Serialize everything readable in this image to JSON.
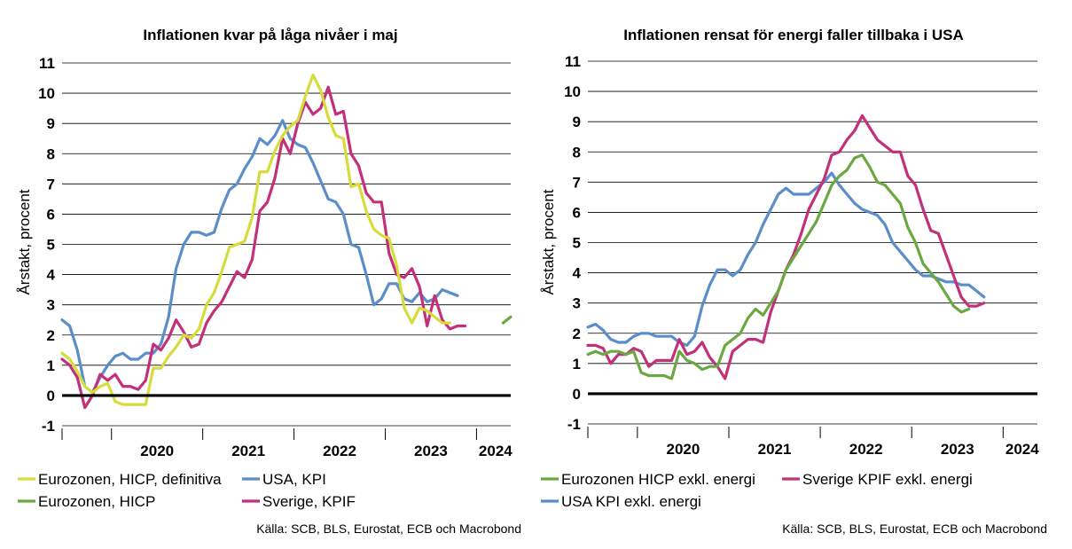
{
  "chart_data": [
    {
      "type": "line",
      "title": "Inflationen kvar på låga nivåer i maj",
      "ylabel": "Årstakt, procent",
      "xlabel": "",
      "ylim": [
        -1,
        11
      ],
      "yticks": [
        "-1",
        "0",
        "1",
        "2",
        "3",
        "4",
        "5",
        "6",
        "7",
        "8",
        "9",
        "10",
        "11"
      ],
      "year_labels": [
        "2020",
        "2021",
        "2022",
        "2023",
        "2024"
      ],
      "x_start": "2019-06",
      "x_end": "2024-05",
      "grid": true,
      "legend_position": "bottom",
      "legend": [
        {
          "name": "Eurozonen, HICP, definitiva",
          "color": "#d6dc3c"
        },
        {
          "name": "USA, KPI",
          "color": "#5b8ec9"
        },
        {
          "name": "Eurozonen, HICP",
          "color": "#6aa842"
        },
        {
          "name": "Sverige, KPIF",
          "color": "#c2307a"
        }
      ],
      "source": "Källa: SCB, BLS, Eurostat, ECB och Macrobond",
      "series": [
        {
          "name": "USA, KPI",
          "color": "#5b8ec9",
          "start": "2019-06",
          "values": [
            2.5,
            2.3,
            1.5,
            0.3,
            0.1,
            0.6,
            1.0,
            1.3,
            1.4,
            1.2,
            1.2,
            1.4,
            1.4,
            1.7,
            2.6,
            4.2,
            5.0,
            5.4,
            5.4,
            5.3,
            5.4,
            6.2,
            6.8,
            7.0,
            7.5,
            7.9,
            8.5,
            8.3,
            8.6,
            9.1,
            8.5,
            8.3,
            8.2,
            7.7,
            7.1,
            6.5,
            6.4,
            6.0,
            5.0,
            4.9,
            4.0,
            3.0,
            3.2,
            3.7,
            3.7,
            3.2,
            3.1,
            3.4,
            3.1,
            3.2,
            3.5,
            3.4,
            3.3
          ]
        },
        {
          "name": "Sverige, KPIF",
          "color": "#c2307a",
          "start": "2019-06",
          "values": [
            1.2,
            1.0,
            0.6,
            -0.4,
            0.0,
            0.7,
            0.5,
            0.7,
            0.3,
            0.3,
            0.2,
            0.5,
            1.7,
            1.5,
            1.9,
            2.5,
            2.1,
            1.6,
            1.7,
            2.4,
            2.8,
            3.1,
            3.6,
            4.1,
            3.9,
            4.5,
            6.1,
            6.4,
            7.2,
            8.5,
            8.0,
            9.0,
            9.7,
            9.3,
            9.5,
            10.2,
            9.3,
            9.4,
            8.0,
            7.6,
            6.7,
            6.4,
            6.4,
            4.7,
            4.0,
            3.9,
            4.2,
            3.6,
            2.3,
            3.3,
            2.5,
            2.2,
            2.3,
            2.3
          ]
        },
        {
          "name": "Eurozonen, HICP, definitiva",
          "color": "#d6dc3c",
          "start": "2019-06",
          "values": [
            1.4,
            1.2,
            0.8,
            0.3,
            0.1,
            0.3,
            0.4,
            -0.2,
            -0.3,
            -0.3,
            -0.3,
            -0.3,
            0.9,
            0.9,
            1.3,
            1.6,
            2.0,
            1.9,
            2.2,
            3.0,
            3.4,
            4.1,
            4.9,
            5.0,
            5.1,
            5.9,
            7.4,
            7.4,
            8.1,
            8.6,
            8.9,
            9.1,
            9.9,
            10.6,
            10.1,
            9.2,
            8.6,
            8.5,
            6.9,
            7.0,
            6.1,
            5.5,
            5.3,
            5.2,
            4.3,
            2.9,
            2.4,
            2.9,
            2.8,
            2.6,
            2.4,
            2.4
          ]
        },
        {
          "name": "Eurozonen, HICP",
          "color": "#6aa842",
          "start": "2024-04",
          "values": [
            2.4,
            2.6
          ]
        }
      ]
    },
    {
      "type": "line",
      "title": "Inflationen rensat för energi faller tillbaka i USA",
      "ylabel": "Årstakt, procent",
      "xlabel": "",
      "ylim": [
        -1,
        11
      ],
      "yticks": [
        "-1",
        "0",
        "1",
        "2",
        "3",
        "4",
        "5",
        "6",
        "7",
        "8",
        "9",
        "10",
        "11"
      ],
      "year_labels": [
        "2020",
        "2021",
        "2022",
        "2023",
        "2024"
      ],
      "x_start": "2019-06",
      "x_end": "2024-05",
      "grid": true,
      "legend_position": "bottom",
      "legend": [
        {
          "name": "Eurozonen HICP exkl. energi",
          "color": "#6aa842"
        },
        {
          "name": "Sverige KPIF exkl. energi",
          "color": "#c2307a"
        },
        {
          "name": "USA KPI exkl. energi",
          "color": "#5b8ec9"
        }
      ],
      "source": "Källa: SCB, BLS, Eurostat, ECB och Macrobond",
      "series": [
        {
          "name": "USA KPI exkl. energi",
          "color": "#5b8ec9",
          "start": "2019-06",
          "values": [
            2.2,
            2.3,
            2.1,
            1.8,
            1.7,
            1.7,
            1.9,
            2.0,
            2.0,
            1.9,
            1.9,
            1.9,
            1.7,
            1.6,
            1.9,
            2.9,
            3.6,
            4.1,
            4.1,
            3.9,
            4.1,
            4.6,
            5.0,
            5.6,
            6.1,
            6.6,
            6.8,
            6.6,
            6.6,
            6.6,
            6.8,
            7.0,
            7.3,
            6.9,
            6.6,
            6.3,
            6.1,
            6.0,
            5.9,
            5.6,
            5.0,
            4.7,
            4.4,
            4.1,
            3.9,
            3.9,
            3.8,
            3.7,
            3.7,
            3.6,
            3.6,
            3.4,
            3.2
          ]
        },
        {
          "name": "Sverige KPIF exkl. energi",
          "color": "#c2307a",
          "start": "2019-06",
          "values": [
            1.6,
            1.6,
            1.5,
            1.0,
            1.3,
            1.3,
            1.5,
            1.4,
            0.9,
            1.1,
            1.1,
            1.1,
            1.8,
            1.3,
            1.4,
            1.7,
            1.2,
            0.9,
            0.5,
            1.4,
            1.6,
            1.8,
            1.8,
            1.7,
            2.7,
            3.4,
            4.1,
            4.6,
            5.3,
            6.1,
            6.6,
            7.1,
            7.9,
            8.0,
            8.4,
            8.7,
            9.2,
            8.8,
            8.4,
            8.2,
            8.0,
            8.0,
            7.2,
            6.9,
            6.1,
            5.4,
            5.3,
            4.6,
            3.9,
            3.2,
            2.9,
            2.9,
            3.0
          ]
        },
        {
          "name": "Eurozonen HICP exkl. energi",
          "color": "#6aa842",
          "start": "2019-06",
          "values": [
            1.3,
            1.4,
            1.3,
            1.4,
            1.4,
            1.3,
            1.4,
            0.7,
            0.6,
            0.6,
            0.6,
            0.5,
            1.4,
            1.1,
            1.0,
            0.8,
            0.9,
            0.9,
            1.6,
            1.8,
            2.0,
            2.5,
            2.8,
            2.6,
            3.0,
            3.4,
            4.1,
            4.5,
            4.9,
            5.3,
            5.7,
            6.3,
            6.9,
            7.2,
            7.4,
            7.8,
            7.9,
            7.5,
            7.0,
            6.9,
            6.6,
            6.3,
            5.5,
            5.0,
            4.3,
            4.0,
            3.7,
            3.3,
            2.9,
            2.7,
            2.8
          ]
        }
      ]
    }
  ]
}
